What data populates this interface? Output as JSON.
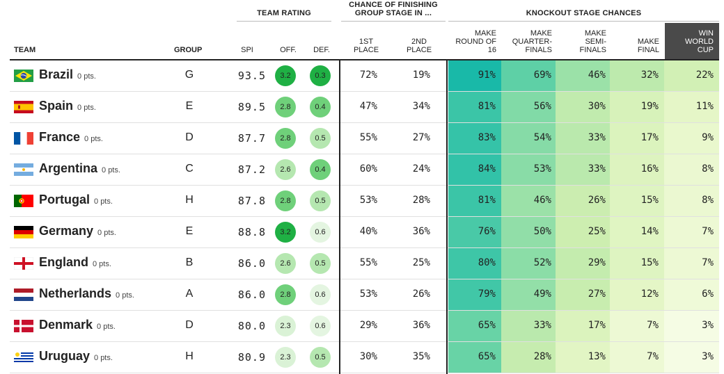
{
  "chart_data": {
    "type": "table",
    "group_headers": {
      "team_rating": "TEAM RATING",
      "chance_finishing_line1": "CHANCE OF FINISHING",
      "chance_finishing_line2": "GROUP STAGE IN ...",
      "knockout": "KNOCKOUT STAGE CHANCES"
    },
    "columns": {
      "team": "TEAM",
      "group": "GROUP",
      "spi": "SPI",
      "off": "OFF.",
      "def": "DEF.",
      "first": [
        "1ST",
        "PLACE"
      ],
      "second": [
        "2ND",
        "PLACE"
      ],
      "r16": [
        "MAKE",
        "ROUND OF",
        "16"
      ],
      "qf": [
        "MAKE",
        "QUARTER-",
        "FINALS"
      ],
      "sf": [
        "MAKE",
        "SEMI-",
        "FINALS"
      ],
      "final": [
        "MAKE",
        "FINAL"
      ],
      "win": [
        "WIN",
        "WORLD",
        "CUP"
      ]
    },
    "rows": [
      {
        "team": "Brazil",
        "flag": "brazil",
        "pts": "0 pts.",
        "group": "G",
        "spi": "93.5",
        "off": "3.2",
        "def": "0.3",
        "first": "72%",
        "second": "19%",
        "r16": "91%",
        "qf": "69%",
        "sf": "46%",
        "final": "32%",
        "win": "22%"
      },
      {
        "team": "Spain",
        "flag": "spain",
        "pts": "0 pts.",
        "group": "E",
        "spi": "89.5",
        "off": "2.8",
        "def": "0.4",
        "first": "47%",
        "second": "34%",
        "r16": "81%",
        "qf": "56%",
        "sf": "30%",
        "final": "19%",
        "win": "11%"
      },
      {
        "team": "France",
        "flag": "france",
        "pts": "0 pts.",
        "group": "D",
        "spi": "87.7",
        "off": "2.8",
        "def": "0.5",
        "first": "55%",
        "second": "27%",
        "r16": "83%",
        "qf": "54%",
        "sf": "33%",
        "final": "17%",
        "win": "9%"
      },
      {
        "team": "Argentina",
        "flag": "argentina",
        "pts": "0 pts.",
        "group": "C",
        "spi": "87.2",
        "off": "2.6",
        "def": "0.4",
        "first": "60%",
        "second": "24%",
        "r16": "84%",
        "qf": "53%",
        "sf": "33%",
        "final": "16%",
        "win": "8%"
      },
      {
        "team": "Portugal",
        "flag": "portugal",
        "pts": "0 pts.",
        "group": "H",
        "spi": "87.8",
        "off": "2.8",
        "def": "0.5",
        "first": "53%",
        "second": "28%",
        "r16": "81%",
        "qf": "46%",
        "sf": "26%",
        "final": "15%",
        "win": "8%"
      },
      {
        "team": "Germany",
        "flag": "germany",
        "pts": "0 pts.",
        "group": "E",
        "spi": "88.8",
        "off": "3.2",
        "def": "0.6",
        "first": "40%",
        "second": "36%",
        "r16": "76%",
        "qf": "50%",
        "sf": "25%",
        "final": "14%",
        "win": "7%"
      },
      {
        "team": "England",
        "flag": "england",
        "pts": "0 pts.",
        "group": "B",
        "spi": "86.0",
        "off": "2.6",
        "def": "0.5",
        "first": "55%",
        "second": "25%",
        "r16": "80%",
        "qf": "52%",
        "sf": "29%",
        "final": "15%",
        "win": "7%"
      },
      {
        "team": "Netherlands",
        "flag": "netherlands",
        "pts": "0 pts.",
        "group": "A",
        "spi": "86.0",
        "off": "2.8",
        "def": "0.6",
        "first": "53%",
        "second": "26%",
        "r16": "79%",
        "qf": "49%",
        "sf": "27%",
        "final": "12%",
        "win": "6%"
      },
      {
        "team": "Denmark",
        "flag": "denmark",
        "pts": "0 pts.",
        "group": "D",
        "spi": "80.0",
        "off": "2.3",
        "def": "0.6",
        "first": "29%",
        "second": "36%",
        "r16": "65%",
        "qf": "33%",
        "sf": "17%",
        "final": "7%",
        "win": "3%"
      },
      {
        "team": "Uruguay",
        "flag": "uruguay",
        "pts": "0 pts.",
        "group": "H",
        "spi": "80.9",
        "off": "2.3",
        "def": "0.5",
        "first": "30%",
        "second": "35%",
        "r16": "65%",
        "qf": "28%",
        "sf": "13%",
        "final": "7%",
        "win": "3%"
      }
    ]
  }
}
